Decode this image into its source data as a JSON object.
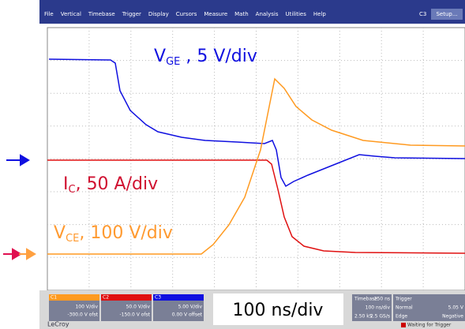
{
  "menu": {
    "items": [
      "File",
      "Vertical",
      "Timebase",
      "Trigger",
      "Display",
      "Cursors",
      "Measure",
      "Math",
      "Analysis",
      "Utilities",
      "Help"
    ],
    "channel": "C3",
    "setup": "Setup..."
  },
  "annotations": {
    "vge": {
      "main": "V",
      "sub": "GE",
      "rest": " , 5 V/div"
    },
    "ic": {
      "main": "I",
      "sub": "C",
      "rest": ",  50 A/div"
    },
    "vce": {
      "main": "V",
      "sub": "CE",
      "rest": ", 100 V/div"
    },
    "time": "100 ns/div"
  },
  "channels": [
    {
      "name": "C1",
      "scale": "100 V/div",
      "offset": "-300.0 V ofst"
    },
    {
      "name": "C2",
      "scale": "50.0 V/div",
      "offset": "-150.0 V ofst"
    },
    {
      "name": "C3",
      "scale": "5.00 V/div",
      "offset": "0.00 V offset"
    }
  ],
  "timebase": {
    "label": "Timebase",
    "delay": "-250 ns",
    "scale": "100 ns/div",
    "samples": "2.50 kS",
    "rate": "2.5 GS/s"
  },
  "trigger": {
    "label": "Trigger",
    "mode": "Normal",
    "level": "5.05 V",
    "type": "Edge",
    "slope": "Negative"
  },
  "brand": "LeCroy",
  "status": "Waiting for Trigger"
}
